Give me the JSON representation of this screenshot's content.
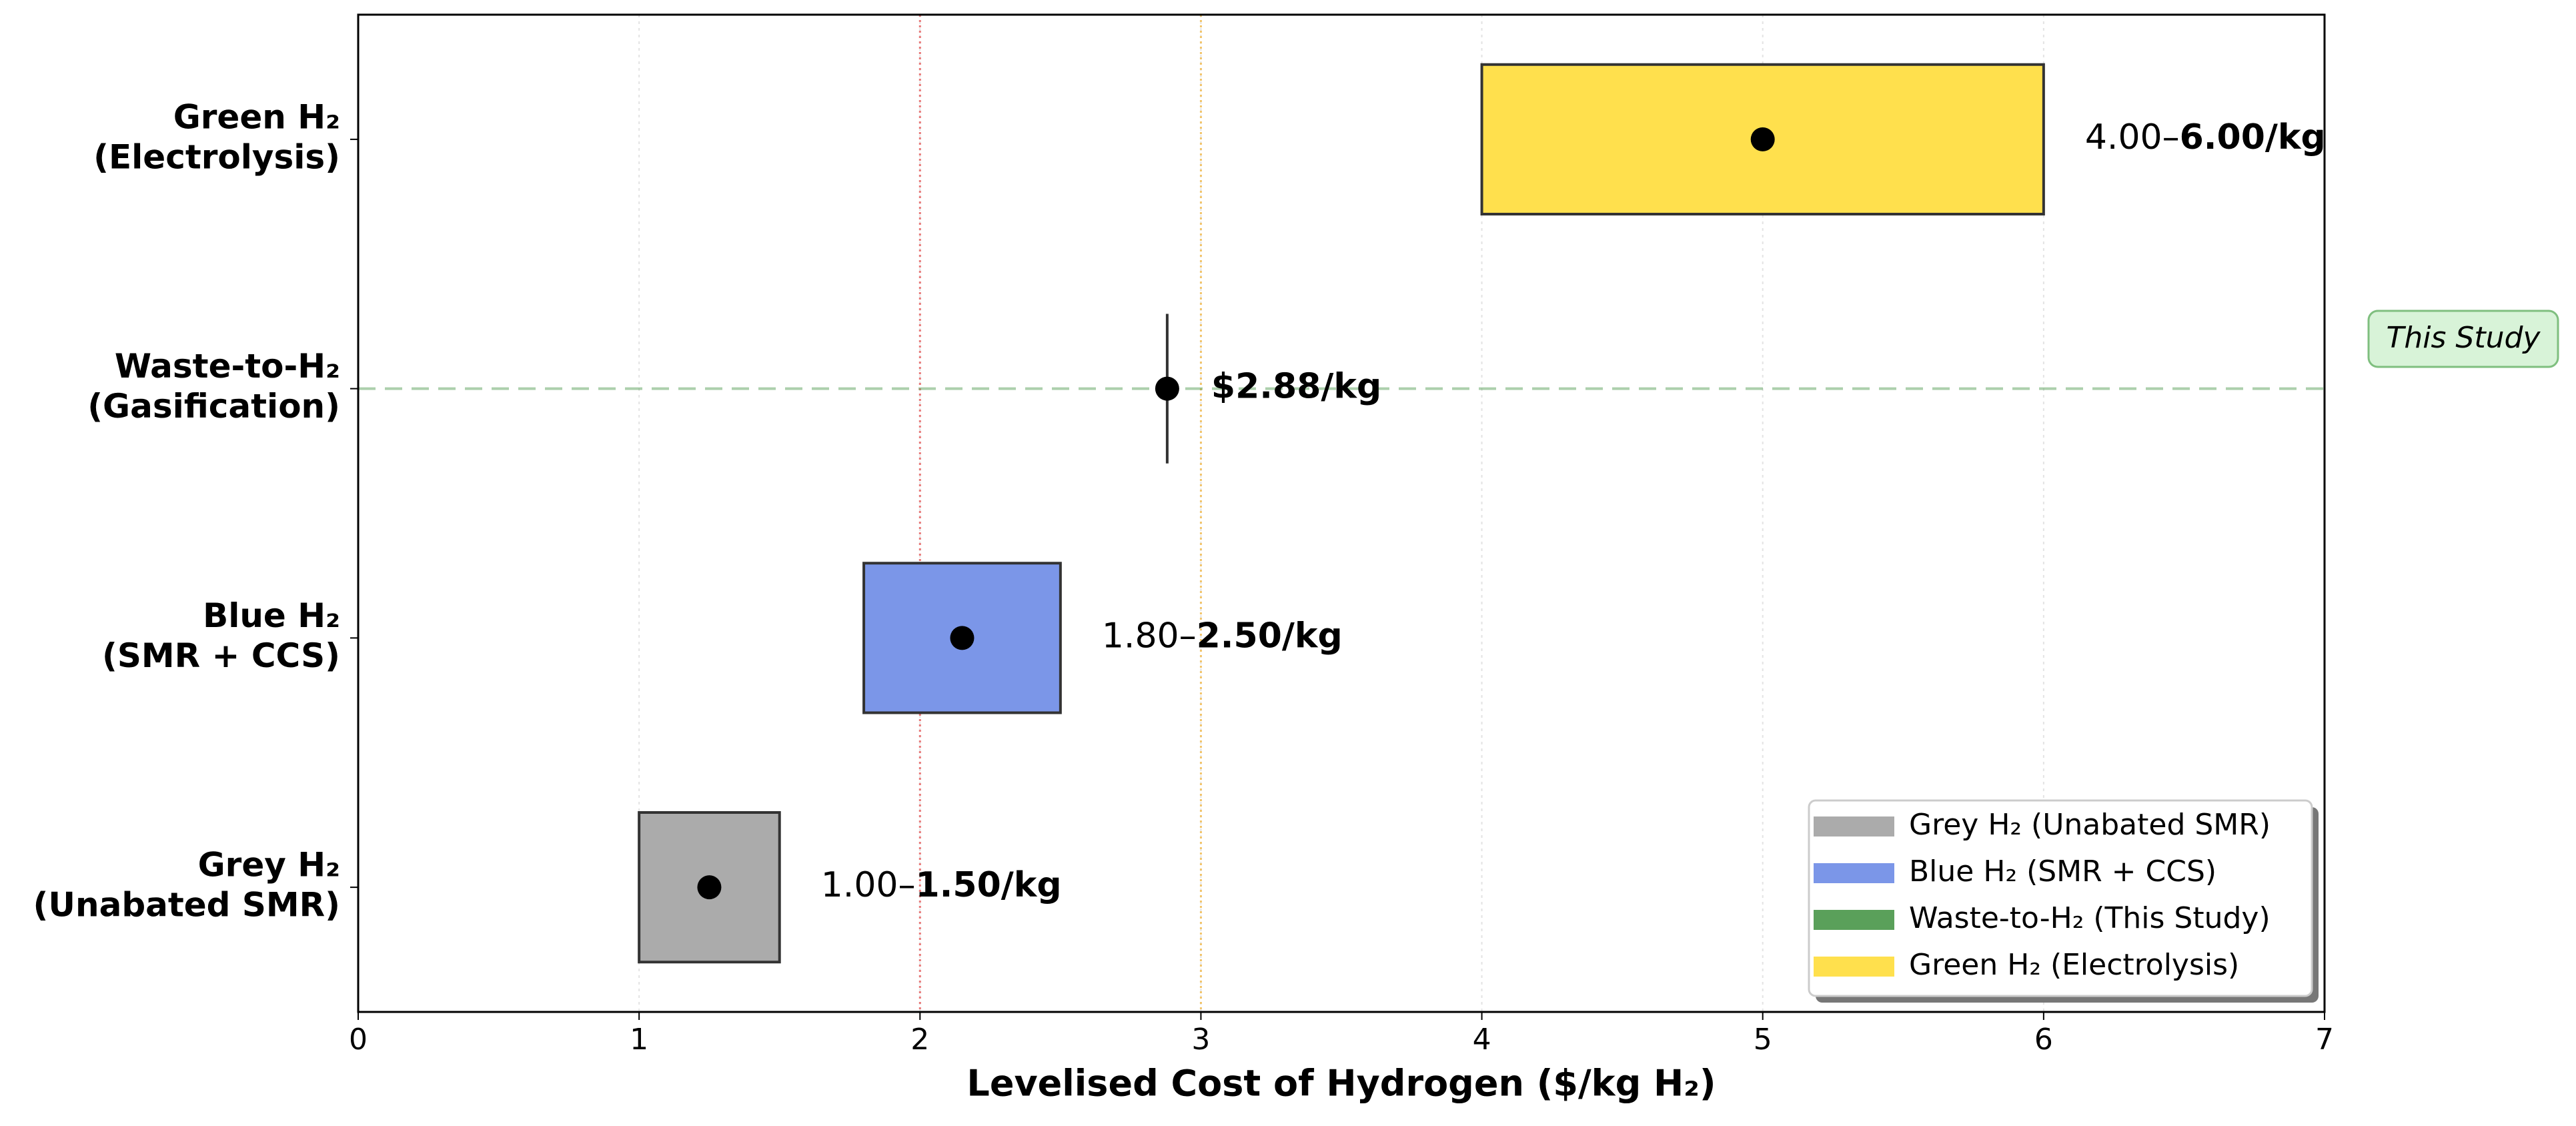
{
  "chart_data": {
    "type": "range",
    "x_label": "Levelised Cost of Hydrogen ($/kg H₂)",
    "xlim": [
      0,
      7
    ],
    "xticks": [
      0,
      1,
      2,
      3,
      4,
      5,
      6,
      7
    ],
    "grid": true,
    "legend_position": "lower right",
    "categories": [
      [
        "Grey H₂",
        "(Unabated SMR)"
      ],
      [
        "Blue H₂",
        "(SMR + CCS)"
      ],
      [
        "Waste-to-H₂",
        "(Gasification)"
      ],
      [
        "Green H₂",
        "(Electrolysis)"
      ]
    ],
    "series": [
      {
        "name": "Grey H₂ (Unabated SMR)",
        "color": "#ababab",
        "low": 1.0,
        "high": 1.5,
        "point": 1.25,
        "low_label": "1.00–",
        "high_label": "1.50/kg"
      },
      {
        "name": "Blue H₂ (SMR + CCS)",
        "color": "#7b96e8",
        "low": 1.8,
        "high": 2.5,
        "point": 2.15,
        "low_label": "1.80–",
        "high_label": "2.50/kg"
      },
      {
        "name": "Waste-to-H₂ (This Study)",
        "color": "#5aa05a",
        "point": 2.88,
        "point_label": "$2.88/kg",
        "highlight": true,
        "annotation": "This Study"
      },
      {
        "name": "Green H₂ (Electrolysis)",
        "color": "#ffe04d",
        "low": 4.0,
        "high": 6.0,
        "point": 5.0,
        "low_label": "4.00–",
        "high_label": "6.00/kg"
      }
    ],
    "reference_lines": [
      {
        "value": 2,
        "color": "#e87878"
      },
      {
        "value": 3,
        "color": "#f2c46a"
      }
    ]
  }
}
